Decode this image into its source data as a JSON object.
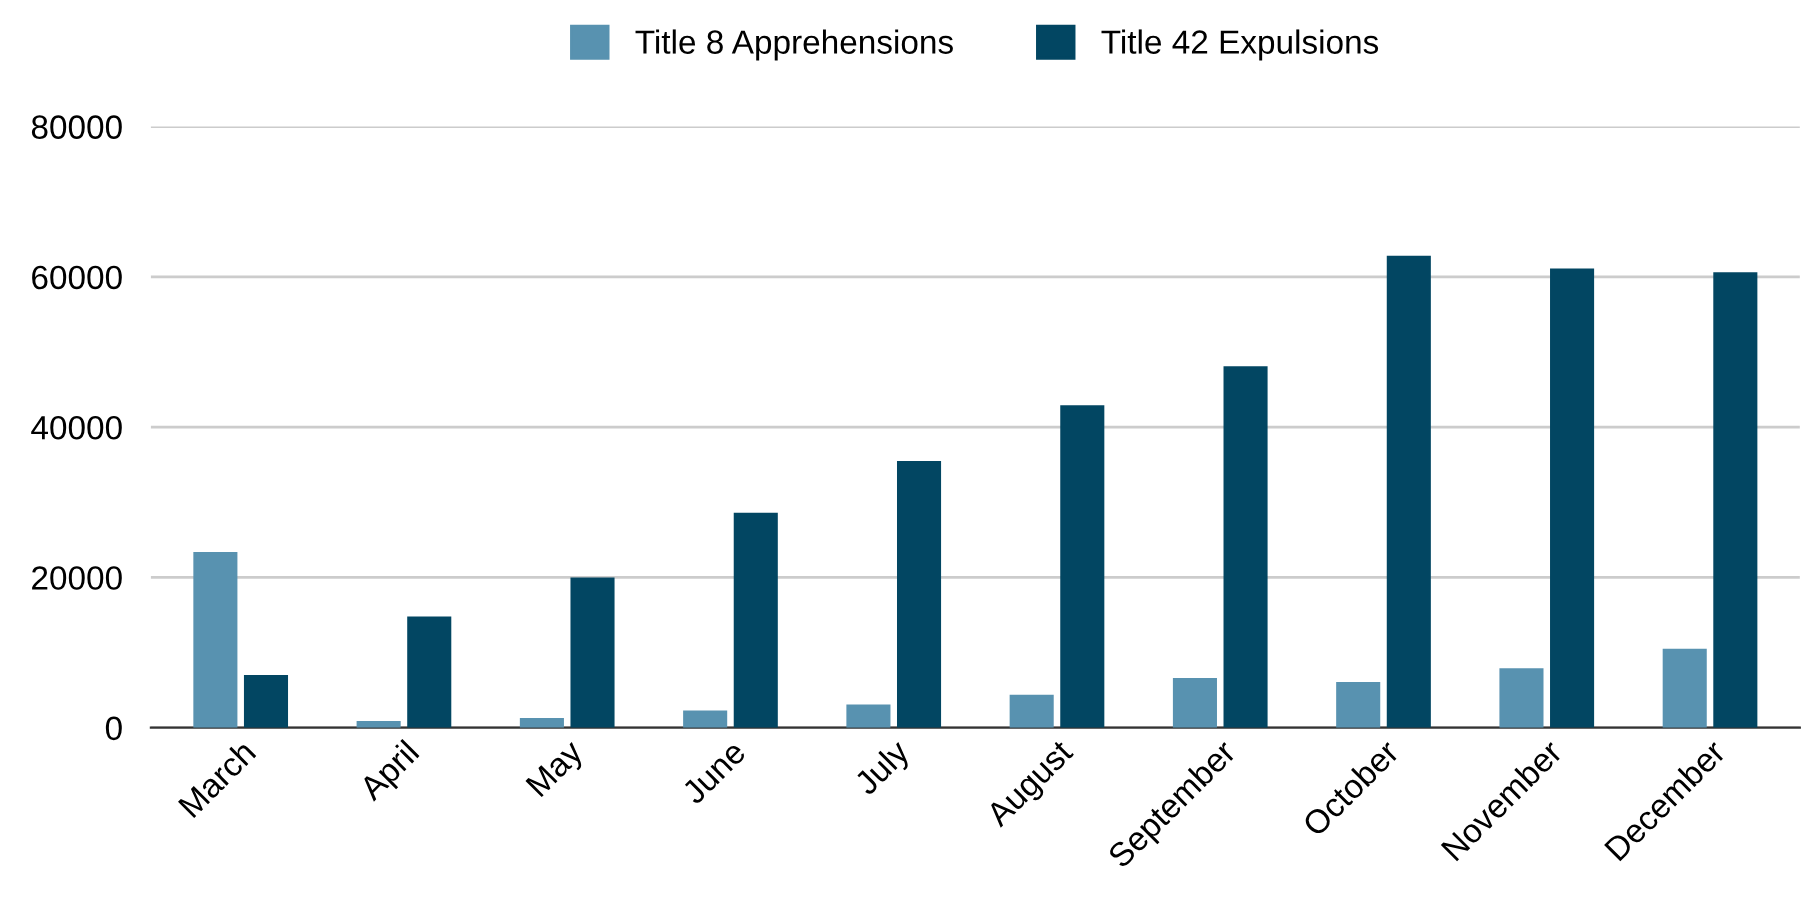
{
  "chart_data": {
    "type": "bar",
    "categories": [
      "March",
      "April",
      "May",
      "June",
      "July",
      "August",
      "September",
      "October",
      "November",
      "December"
    ],
    "series": [
      {
        "name": "Title 8 Apprehensions",
        "color": "#5892b0",
        "values": [
          23400,
          900,
          1300,
          2300,
          3100,
          4400,
          6600,
          6100,
          7900,
          10500
        ]
      },
      {
        "name": "Title 42 Expulsions",
        "color": "#024662",
        "values": [
          7000,
          14800,
          20000,
          28600,
          35500,
          42900,
          48100,
          62800,
          61100,
          60600
        ]
      }
    ],
    "ylim": [
      0,
      80000
    ],
    "yticks": [
      0,
      20000,
      40000,
      60000,
      80000
    ],
    "grid": "y",
    "legend": "top"
  }
}
